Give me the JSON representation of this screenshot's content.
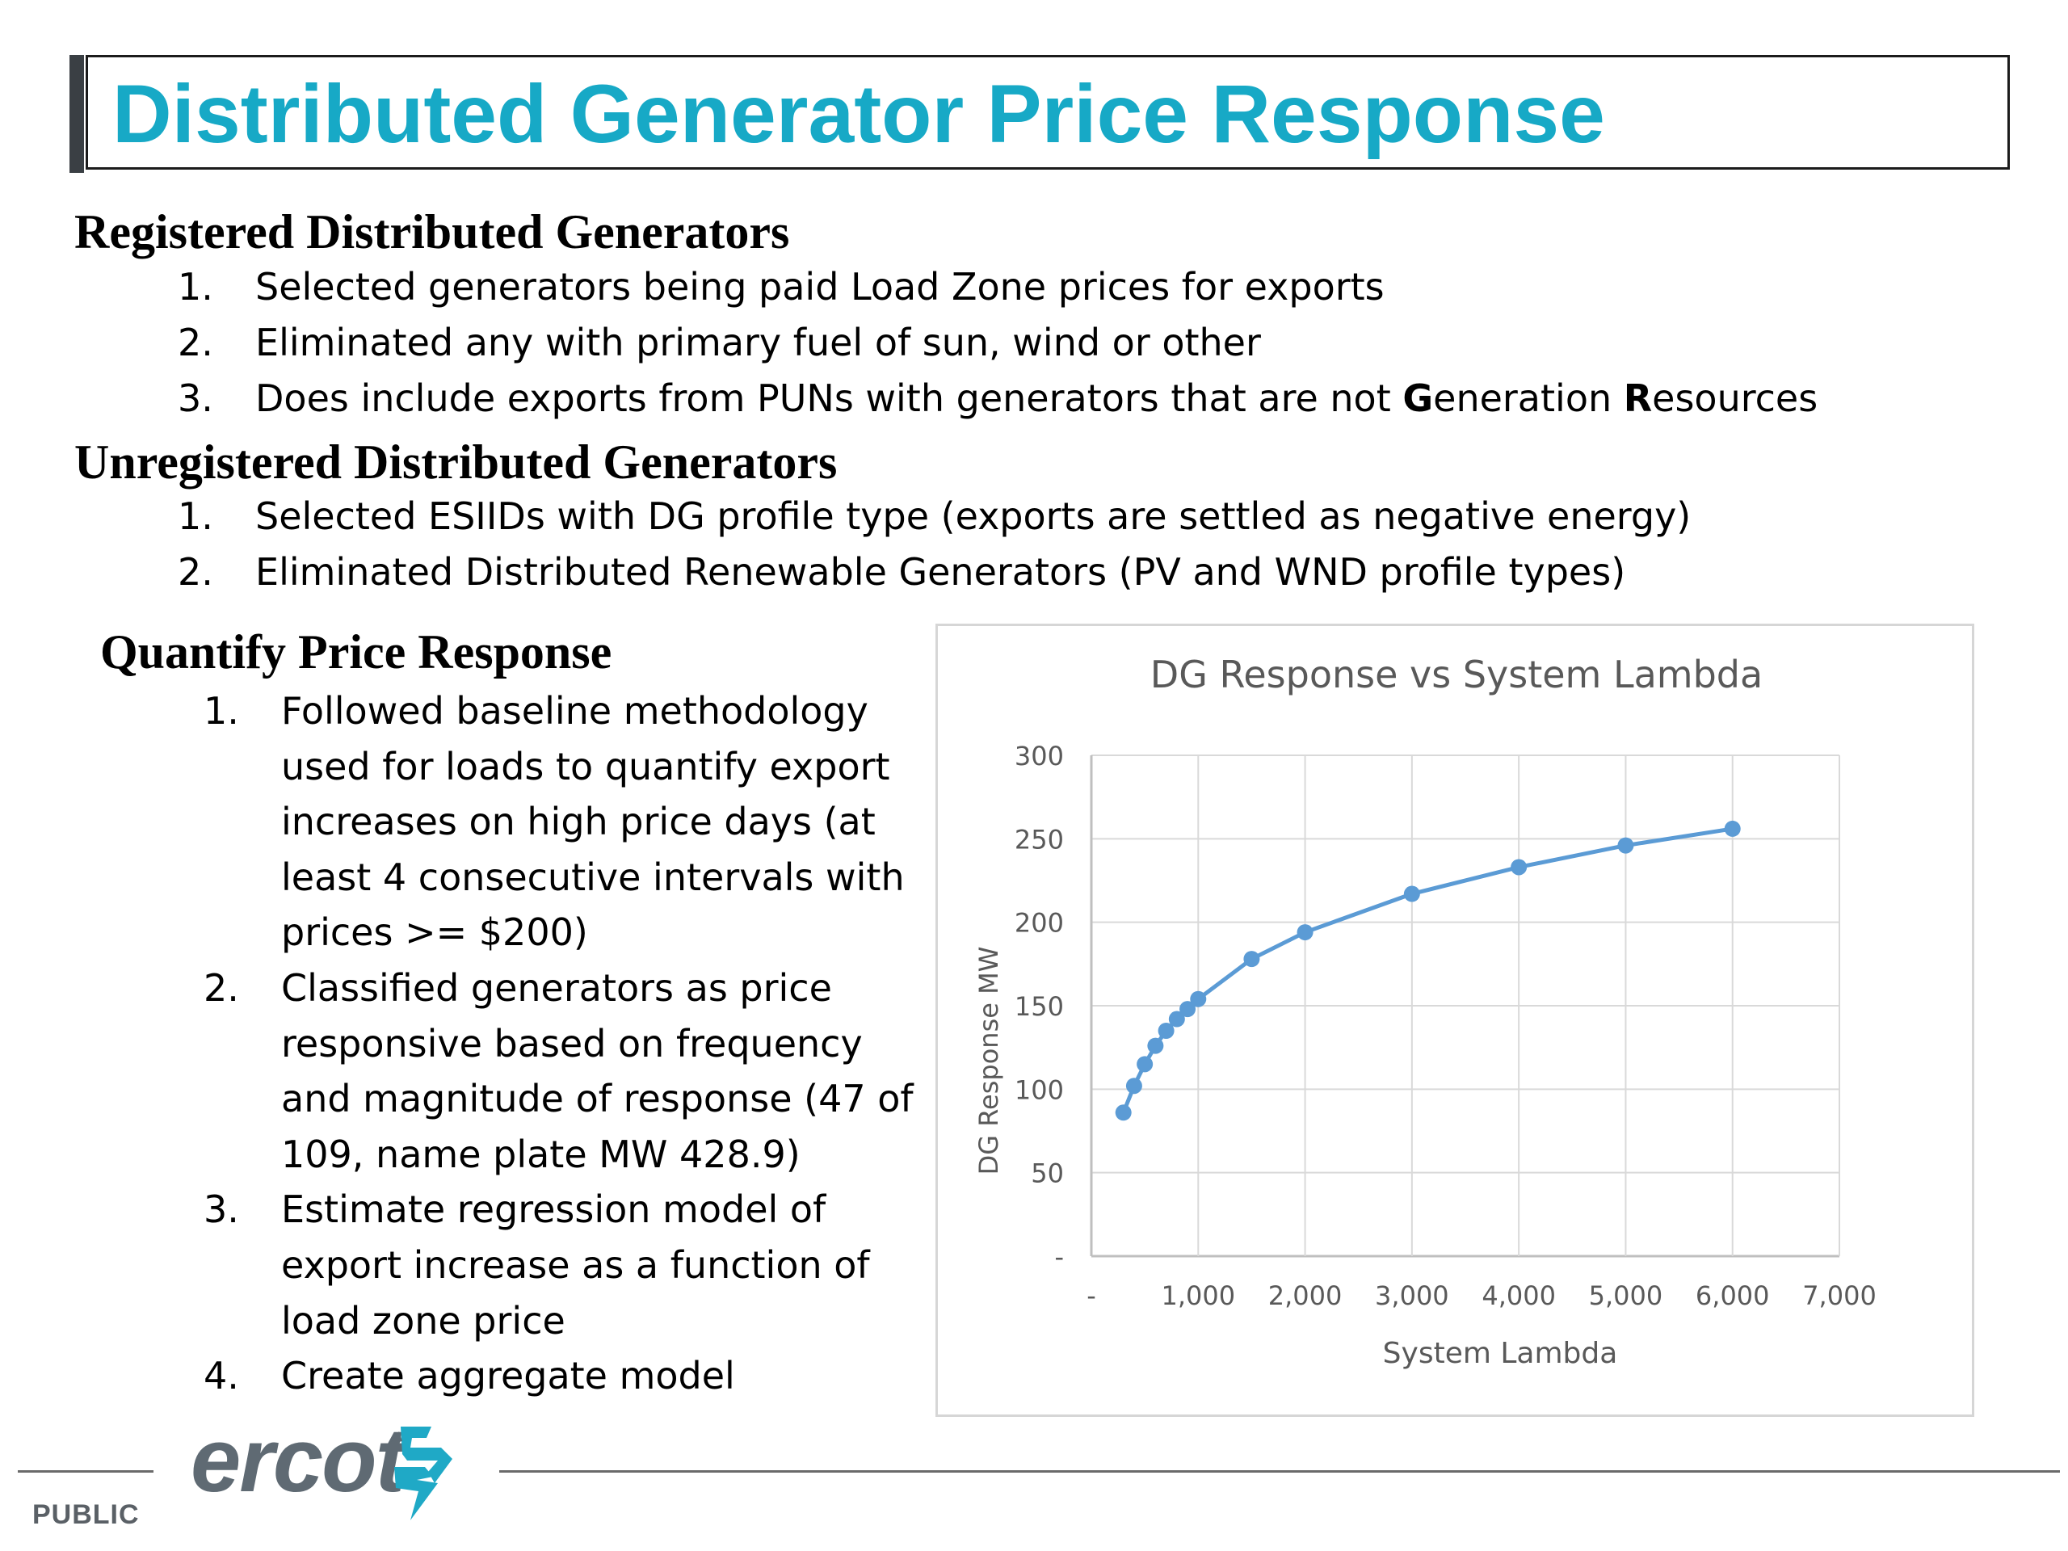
{
  "title": "Distributed Generator Price Response",
  "registered": {
    "heading": "Registered Distributed Generators",
    "items": [
      {
        "num": "1.",
        "text": "Selected generators being paid Load Zone prices for exports"
      },
      {
        "num": "2.",
        "text": "Eliminated any with primary fuel of sun, wind or other"
      },
      {
        "num": "3.",
        "text_before": "Does include exports from PUNs with generators that are not ",
        "bold_g": "G",
        "mid": "eneration ",
        "bold_r": "R",
        "after": "esources"
      }
    ]
  },
  "unregistered": {
    "heading": "Unregistered Distributed Generators",
    "items": [
      {
        "num": "1.",
        "text": "Selected ESIIDs with DG profile type (exports are settled as negative energy)"
      },
      {
        "num": "2.",
        "text": "Eliminated Distributed Renewable Generators (PV and WND profile types)"
      }
    ]
  },
  "quantify": {
    "heading": "Quantify Price Response",
    "items": [
      {
        "num": "1.",
        "text": "Followed baseline methodology used for loads to quantify export increases on high price days (at least 4 consecutive intervals with prices >= $200)"
      },
      {
        "num": "2.",
        "text": "Classified generators as price responsive based on frequency and magnitude of response (47 of 109, name plate MW 428.9)"
      },
      {
        "num": "3.",
        "text": "Estimate regression model of export increase as a function of load zone price"
      },
      {
        "num": "4.",
        "text": "Create aggregate model"
      }
    ]
  },
  "chart_data": {
    "type": "line",
    "title": "DG Response vs System Lambda",
    "xlabel": "System Lambda",
    "ylabel": "DG Response MW",
    "xlim": [
      0,
      7000
    ],
    "ylim": [
      0,
      300
    ],
    "x_ticks": [
      0,
      1000,
      2000,
      3000,
      4000,
      5000,
      6000,
      7000
    ],
    "x_tick_labels": [
      "-",
      "1,000",
      "2,000",
      "3,000",
      "4,000",
      "5,000",
      "6,000",
      "7,000"
    ],
    "y_ticks": [
      0,
      50,
      100,
      150,
      200,
      250,
      300
    ],
    "y_tick_labels": [
      "-",
      "50",
      "100",
      "150",
      "200",
      "250",
      "300"
    ],
    "grid": true,
    "series": [
      {
        "color": "#5b9bd5",
        "x": [
          300,
          400,
          500,
          600,
          700,
          800,
          900,
          1000,
          1500,
          2000,
          3000,
          4000,
          5000,
          6000
        ],
        "y": [
          86,
          102,
          115,
          126,
          135,
          142,
          148,
          154,
          178,
          194,
          217,
          233,
          246,
          256
        ]
      }
    ]
  },
  "footer": {
    "classification": "PUBLIC",
    "logo_text": "ercot"
  }
}
